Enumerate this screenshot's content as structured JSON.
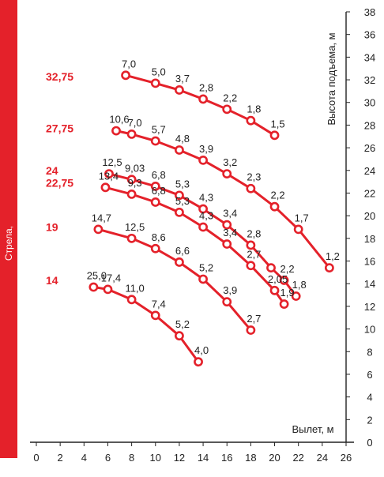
{
  "chart_data": {
    "type": "line",
    "xlabel": "Вылет, м",
    "ylabel": "Высота подъема, м",
    "boom_axis_label": "Стрела, м",
    "x_ticks": [
      0,
      2,
      4,
      6,
      8,
      10,
      12,
      14,
      16,
      18,
      20,
      22,
      24,
      26
    ],
    "y_ticks": [
      0,
      2,
      4,
      6,
      8,
      10,
      12,
      14,
      16,
      18,
      20,
      22,
      24,
      26,
      28,
      30,
      32,
      34,
      36,
      38
    ],
    "xlim": [
      0,
      26
    ],
    "ylim": [
      0,
      38
    ],
    "grid": false,
    "colors": {
      "series": "#e4212a",
      "boom_bar": "#e4212a",
      "text": "#222222"
    },
    "series": [
      {
        "name": "32,75",
        "label_y": 32.3,
        "points": [
          {
            "x": 7.5,
            "y": 32.4,
            "label": "7,0"
          },
          {
            "x": 10.0,
            "y": 31.7,
            "label": "5,0"
          },
          {
            "x": 12.0,
            "y": 31.1,
            "label": "3,7"
          },
          {
            "x": 14.0,
            "y": 30.3,
            "label": "2,8"
          },
          {
            "x": 16.0,
            "y": 29.4,
            "label": "2,2"
          },
          {
            "x": 18.0,
            "y": 28.4,
            "label": "1,8"
          },
          {
            "x": 20.0,
            "y": 27.1,
            "label": "1,5"
          }
        ]
      },
      {
        "name": "27,75",
        "label_y": 27.7,
        "points": [
          {
            "x": 6.7,
            "y": 27.5,
            "label": "10,6"
          },
          {
            "x": 8.0,
            "y": 27.2,
            "label": "7,0"
          },
          {
            "x": 10.0,
            "y": 26.6,
            "label": "5,7"
          },
          {
            "x": 12.0,
            "y": 25.8,
            "label": "4,8"
          },
          {
            "x": 14.0,
            "y": 24.9,
            "label": "3,9"
          },
          {
            "x": 16.0,
            "y": 23.7,
            "label": "3,2"
          },
          {
            "x": 18.0,
            "y": 22.4,
            "label": "2,3"
          },
          {
            "x": 20.0,
            "y": 20.8,
            "label": "2,2"
          },
          {
            "x": 22.0,
            "y": 18.8,
            "label": "1,7"
          },
          {
            "x": 24.6,
            "y": 15.4,
            "label": "1,2"
          }
        ]
      },
      {
        "name": "24",
        "label_y": 24.0,
        "points": [
          {
            "x": 6.1,
            "y": 23.7,
            "label": "12,5"
          },
          {
            "x": 8.0,
            "y": 23.2,
            "label": "9,03"
          },
          {
            "x": 10.0,
            "y": 22.6,
            "label": "6,8"
          },
          {
            "x": 12.0,
            "y": 21.8,
            "label": "5,3"
          },
          {
            "x": 14.0,
            "y": 20.6,
            "label": "4,3"
          },
          {
            "x": 16.0,
            "y": 19.2,
            "label": "3,4"
          },
          {
            "x": 18.0,
            "y": 17.4,
            "label": "2,8"
          },
          {
            "x": 19.7,
            "y": 15.4,
            "label": ""
          },
          {
            "x": 20.8,
            "y": 14.3,
            "label": "2,2"
          },
          {
            "x": 21.8,
            "y": 12.9,
            "label": "1,8"
          }
        ]
      },
      {
        "name": "22,75",
        "label_y": 22.9,
        "points": [
          {
            "x": 5.8,
            "y": 22.5,
            "label": "13,4"
          },
          {
            "x": 8.0,
            "y": 21.9,
            "label": "9,3"
          },
          {
            "x": 10.0,
            "y": 21.2,
            "label": "6,8"
          },
          {
            "x": 12.0,
            "y": 20.3,
            "label": "5,3"
          },
          {
            "x": 14.0,
            "y": 19.0,
            "label": "4,3"
          },
          {
            "x": 16.0,
            "y": 17.5,
            "label": "3,4"
          },
          {
            "x": 18.0,
            "y": 15.6,
            "label": "2,7"
          },
          {
            "x": 20.0,
            "y": 13.4,
            "label": "2,05"
          },
          {
            "x": 20.8,
            "y": 12.2,
            "label": "1,9"
          }
        ]
      },
      {
        "name": "19",
        "label_y": 19.0,
        "points": [
          {
            "x": 5.2,
            "y": 18.8,
            "label": "14,7"
          },
          {
            "x": 8.0,
            "y": 18.0,
            "label": "12,5"
          },
          {
            "x": 10.0,
            "y": 17.1,
            "label": "8,6"
          },
          {
            "x": 12.0,
            "y": 15.9,
            "label": "6,6"
          },
          {
            "x": 14.0,
            "y": 14.4,
            "label": "5,2"
          },
          {
            "x": 16.0,
            "y": 12.4,
            "label": "3,9"
          },
          {
            "x": 18.0,
            "y": 9.9,
            "label": "2,7"
          }
        ]
      },
      {
        "name": "14",
        "label_y": 14.3,
        "points": [
          {
            "x": 4.8,
            "y": 13.7,
            "label": "25,0"
          },
          {
            "x": 6.0,
            "y": 13.5,
            "label": "17,4"
          },
          {
            "x": 8.0,
            "y": 12.6,
            "label": "11,0"
          },
          {
            "x": 10.0,
            "y": 11.2,
            "label": "7,4"
          },
          {
            "x": 12.0,
            "y": 9.4,
            "label": "5,2"
          },
          {
            "x": 13.6,
            "y": 7.1,
            "label": "4,0"
          }
        ]
      }
    ]
  }
}
